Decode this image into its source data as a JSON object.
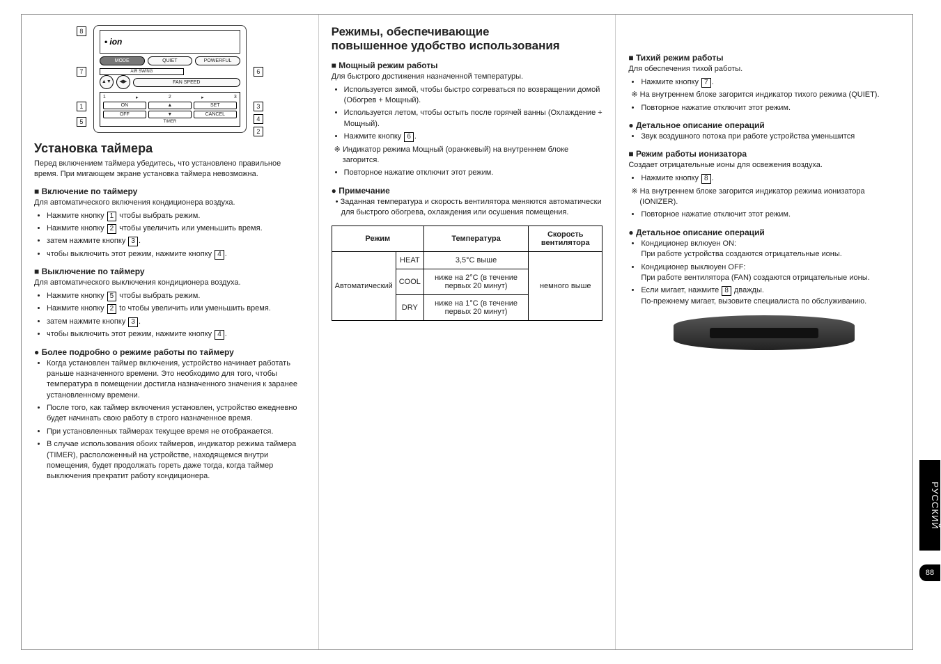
{
  "remote": {
    "ion": "ion",
    "buttons": {
      "mode": "MODE",
      "quiet": "QUIET",
      "powerful": "POWERFUL",
      "airswing": "AIR SWING",
      "fanspeed": "FAN SPEED",
      "on": "ON",
      "set": "SET",
      "off": "OFF",
      "cancel": "CANCEL",
      "timer": "TIMER"
    },
    "nums": {
      "n1": "1",
      "n2": "2",
      "n3": "3"
    },
    "callouts": {
      "c1": "1",
      "c2": "2",
      "c3": "3",
      "c4": "4",
      "c5": "5",
      "c6": "6",
      "c7": "7",
      "c8": "8"
    }
  },
  "col1": {
    "h2": "Установка таймера",
    "intro": "Перед включением таймера убедитесь, что установлено правильное время. При мигающем экране установка таймера невозможна.",
    "s1": {
      "title": "Включение по таймеру",
      "sub": "Для автоматического включения кондиционера воздуха.",
      "b": [
        "Нажмите кнопку <k>1</k> чтобы выбрать режим.",
        "Нажмите кнопку <k>2</k> чтобы увеличить или уменьшить время.",
        "затем нажмите кнопку <k>3</k>.",
        "чтобы выключить этот режим, нажмите кнопку <k>4</k>."
      ]
    },
    "s2": {
      "title": "Выключение по таймеру",
      "sub": "Для автоматического выключения кондиционера воздуха.",
      "b": [
        "Нажмите кнопку <k>5</k> чтобы выбрать режим.",
        "Нажмите кнопку <k>2</k> to чтобы увеличить или уменьшить время.",
        "затем нажмите кнопку <k>3</k>.",
        "чтобы выключить этот режим, нажмите кнопку <k>4</k>."
      ]
    },
    "s3": {
      "title": "Более подробно о режиме работы по таймеру",
      "b": [
        "Когда установлен таймер включения, устройство начинает работать раньше назначенного времени. Это необходимо для того, чтобы температура в помещении достигла назначенного значения к заранее установленному времени.",
        "После того, как таймер включения установлен, устройство ежедневно будет начинать свою работу в строго назначенное время.",
        "При установленных таймерах текущее время не отображается.",
        "В случае использования обоих таймеров, индикатор режима таймера (TIMER), расположенный на устройстве, находящемся внутри помещения, будет продолжать гореть даже тогда, когда таймер выключения прекратит работу кондиционера."
      ]
    }
  },
  "col2": {
    "h3a": "Режимы, обеспечивающие",
    "h3b": "повышенное удобство использования",
    "s1": {
      "title": "Мощный режим работы",
      "sub": "Для быстрого достижения назначенной температуры.",
      "b": [
        "Используется зимой, чтобы быстро согреваться по возвращении домой (Обогрев + Мощный).",
        "Используется летом, чтобы остыть после горячей ванны (Охлаждение + Мощный).",
        "Нажмите кнопку <k>6</k>."
      ],
      "star": "Индикатор режима Мощный (оранжевый) на внутреннем блоке загорится.",
      "b2": [
        "Повторное нажатие отключит этот режим."
      ]
    },
    "note": {
      "title": "Примечание",
      "b": "Заданная температура и скорость вентилятора меняются автоматически для быстрого обогрева, охлаждения или осушения помещения."
    },
    "table": {
      "h": [
        "Режим",
        "Температура",
        "Скорость вентилятора"
      ],
      "r1": {
        "mode": "Автоматический",
        "m": "HEAT",
        "t": "3,5°C выше",
        "f": "немного выше"
      },
      "r2": {
        "m": "COOL",
        "t": "ниже на 2°C (в течение первых 20 минут)"
      },
      "r3": {
        "m": "DRY",
        "t": "ниже на 1°C (в течение первых 20 минут)"
      }
    }
  },
  "col3": {
    "s1": {
      "title": "Тихий режим работы",
      "sub": "Для обеспечения тихой работы.",
      "b1": "Нажмите кнопку <k>7</k>.",
      "star": "На внутреннем блоке загорится индикатор тихого режима (QUIET).",
      "b2": "Повторное нажатие отключит этот режим."
    },
    "s2": {
      "title": "Детальное описание операций",
      "b": "Звук воздушного потока при работе устройства уменьшится"
    },
    "s3": {
      "title": "Режим работы ионизатора",
      "sub": "Создает отрицательные ионы для освежения воздуха.",
      "b1": "Нажмите кнопку <k>8</k>.",
      "star": "На внутреннем блоке загорится индикатор режима ионизатора (IONIZER).",
      "b2": "Повторное нажатие отключит этот режим."
    },
    "s4": {
      "title": "Детальное описание операций",
      "b": [
        "Кондиционер вклюуен ON:\nПри работе устройства создаются отрицательные ионы.",
        "Кондиционер выклюуен OFF:\nПри работе вентилятора (FAN) создаются отрицательные ионы.",
        "Если мигает, нажмите <k>8</k> дважды.\nПо-прежнему мигает, вызовите специалиста по обслуживанию."
      ]
    }
  },
  "sidetab": "РУССКИЙ",
  "pagenum": "88"
}
